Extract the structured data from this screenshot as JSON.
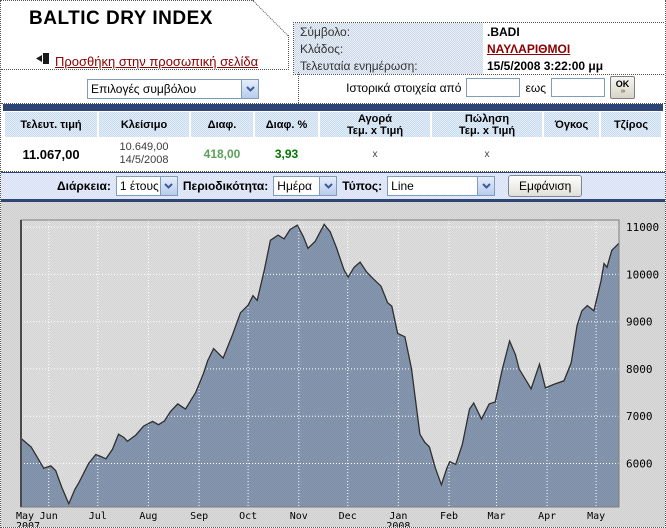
{
  "header": {
    "title": "BALTIC DRY INDEX",
    "add_link": "Προσθήκη στην προσωπική σελίδα",
    "symbol_label": "Σύμβολο:",
    "symbol_value": ".BADI",
    "sector_label": "Κλάδος:",
    "sector_value": "ΝΑΥΛΑΡΙΘΜΟΙ",
    "updated_label": "Τελευταία ενημέρωση:",
    "updated_value": "15/5/2008 3:22:00 μμ"
  },
  "toolbar": {
    "symbol_options": "Επιλογές συμβόλου",
    "historical_label": "Ιστορικά στοιχεία από",
    "to_label": "εως",
    "ok_label": "OK",
    "ok_arrows_icon": "›››"
  },
  "quote_table": {
    "columns": [
      {
        "l1": "Τελευτ. τιμή"
      },
      {
        "l1": "Κλείσιμο"
      },
      {
        "l1": "Διαφ."
      },
      {
        "l1": "Διαφ. %"
      },
      {
        "l1": "Αγορά",
        "l2": "Τεμ. x Τιμή"
      },
      {
        "l1": "Πώληση",
        "l2": "Τεμ. x Τιμή"
      },
      {
        "l1": "Όγκος"
      },
      {
        "l1": "Τζίρος"
      }
    ],
    "row": {
      "last": "11.067,00",
      "close": "10.649,00",
      "close_date": "14/5/2008",
      "diff": "418,00",
      "diff_pct": "3,93",
      "bid": "x",
      "ask": "x",
      "volume": "",
      "turnover": ""
    }
  },
  "controls": {
    "duration_label": "Διάρκεια:",
    "duration_value": "1 έτους",
    "period_label": "Περιοδικότητα:",
    "period_value": "Ημέρα",
    "type_label": "Τύπος:",
    "type_value": "Line",
    "show_button": "Εμφάνιση"
  },
  "colors": {
    "navy": "#2f4575",
    "panel_blue": "#cfe0ef",
    "link_red": "#8b0000",
    "positive_green": "#007700",
    "diff_green": "#5aa05a",
    "area_fill": "#8697ae",
    "area_stroke": "#2f2f2f",
    "chart_bg": "#d7d7d7"
  },
  "chart_data": {
    "type": "area",
    "symbol": ".BADI",
    "x_range": [
      "15/5/2007",
      "15/5/2008"
    ],
    "ylim": [
      5080,
      11150
    ],
    "y_ticks": [
      11000,
      10000,
      9000,
      8000,
      7000,
      6000
    ],
    "grid": "white-dotted",
    "legend_position": "none",
    "x_ticks": [
      {
        "f": 0.0,
        "label": "May",
        "sub": "2007",
        "align": "start"
      },
      {
        "f": 0.0464,
        "label": "Jun"
      },
      {
        "f": 0.1284,
        "label": "Jul"
      },
      {
        "f": 0.2131,
        "label": "Aug"
      },
      {
        "f": 0.2978,
        "label": "Sep"
      },
      {
        "f": 0.3798,
        "label": "Oct"
      },
      {
        "f": 0.4645,
        "label": "Nov"
      },
      {
        "f": 0.5464,
        "label": "Dec"
      },
      {
        "f": 0.6311,
        "label": "Jan",
        "sub": "2008"
      },
      {
        "f": 0.7158,
        "label": "Feb"
      },
      {
        "f": 0.7951,
        "label": "Mar"
      },
      {
        "f": 0.8798,
        "label": "Apr"
      },
      {
        "f": 0.9617,
        "label": "May"
      }
    ],
    "series": [
      {
        "name": ".BADI",
        "points": [
          [
            0.0,
            6530
          ],
          [
            0.017,
            6350
          ],
          [
            0.038,
            5900
          ],
          [
            0.05,
            5950
          ],
          [
            0.058,
            5850
          ],
          [
            0.068,
            5500
          ],
          [
            0.08,
            5150
          ],
          [
            0.09,
            5450
          ],
          [
            0.097,
            5600
          ],
          [
            0.113,
            6000
          ],
          [
            0.125,
            6190
          ],
          [
            0.133,
            6150
          ],
          [
            0.142,
            6100
          ],
          [
            0.153,
            6300
          ],
          [
            0.163,
            6620
          ],
          [
            0.172,
            6550
          ],
          [
            0.178,
            6470
          ],
          [
            0.192,
            6600
          ],
          [
            0.205,
            6790
          ],
          [
            0.22,
            6890
          ],
          [
            0.23,
            6820
          ],
          [
            0.24,
            6900
          ],
          [
            0.25,
            7100
          ],
          [
            0.262,
            7260
          ],
          [
            0.275,
            7150
          ],
          [
            0.292,
            7500
          ],
          [
            0.305,
            7900
          ],
          [
            0.312,
            8170
          ],
          [
            0.322,
            8430
          ],
          [
            0.338,
            8230
          ],
          [
            0.353,
            8700
          ],
          [
            0.367,
            9190
          ],
          [
            0.38,
            9350
          ],
          [
            0.388,
            9550
          ],
          [
            0.395,
            9450
          ],
          [
            0.407,
            10100
          ],
          [
            0.417,
            10720
          ],
          [
            0.43,
            10830
          ],
          [
            0.44,
            10750
          ],
          [
            0.45,
            10950
          ],
          [
            0.462,
            11040
          ],
          [
            0.472,
            10800
          ],
          [
            0.48,
            10550
          ],
          [
            0.492,
            10700
          ],
          [
            0.507,
            11060
          ],
          [
            0.517,
            10900
          ],
          [
            0.528,
            10550
          ],
          [
            0.54,
            10100
          ],
          [
            0.547,
            9940
          ],
          [
            0.557,
            10150
          ],
          [
            0.567,
            10260
          ],
          [
            0.578,
            10050
          ],
          [
            0.588,
            9920
          ],
          [
            0.602,
            9750
          ],
          [
            0.613,
            9400
          ],
          [
            0.62,
            9330
          ],
          [
            0.63,
            8750
          ],
          [
            0.642,
            8680
          ],
          [
            0.653,
            8000
          ],
          [
            0.667,
            6620
          ],
          [
            0.675,
            6450
          ],
          [
            0.683,
            6350
          ],
          [
            0.693,
            5900
          ],
          [
            0.703,
            5550
          ],
          [
            0.712,
            5900
          ],
          [
            0.717,
            6040
          ],
          [
            0.727,
            5980
          ],
          [
            0.738,
            6400
          ],
          [
            0.75,
            7150
          ],
          [
            0.757,
            7280
          ],
          [
            0.77,
            6940
          ],
          [
            0.783,
            7260
          ],
          [
            0.793,
            7300
          ],
          [
            0.805,
            8000
          ],
          [
            0.817,
            8590
          ],
          [
            0.827,
            8300
          ],
          [
            0.833,
            8000
          ],
          [
            0.845,
            7750
          ],
          [
            0.853,
            7580
          ],
          [
            0.867,
            8100
          ],
          [
            0.877,
            7600
          ],
          [
            0.892,
            7680
          ],
          [
            0.908,
            7750
          ],
          [
            0.92,
            8130
          ],
          [
            0.93,
            8920
          ],
          [
            0.938,
            9230
          ],
          [
            0.947,
            9340
          ],
          [
            0.958,
            9230
          ],
          [
            0.97,
            9870
          ],
          [
            0.975,
            10230
          ],
          [
            0.98,
            10150
          ],
          [
            0.988,
            10510
          ],
          [
            1.0,
            10660
          ]
        ]
      }
    ]
  }
}
